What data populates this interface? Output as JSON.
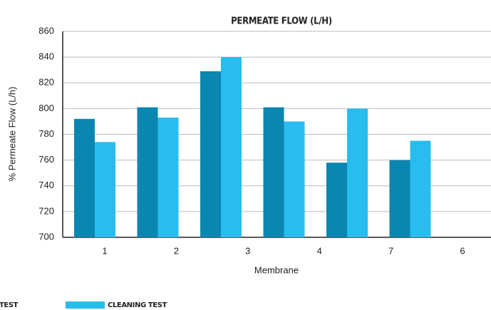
{
  "chart_data": {
    "type": "bar",
    "title": "PERMEATE FLOW (L/H)",
    "x_label": "Membrane",
    "y_label": "% Permeate Flow (L/h)",
    "categories": [
      "1",
      "2",
      "3",
      "4",
      "7",
      "6"
    ],
    "series": [
      {
        "name": "TEST",
        "color": "#0a86b0",
        "values": [
          792,
          801,
          829,
          801,
          758,
          760
        ]
      },
      {
        "name": "CLEANING TEST",
        "color": "#29bcee",
        "values": [
          774,
          793,
          840,
          790,
          800,
          775
        ]
      }
    ],
    "ylim": [
      700,
      860
    ],
    "yticks": [
      700,
      720,
      740,
      760,
      780,
      800,
      820,
      840,
      860
    ],
    "grid": true
  }
}
